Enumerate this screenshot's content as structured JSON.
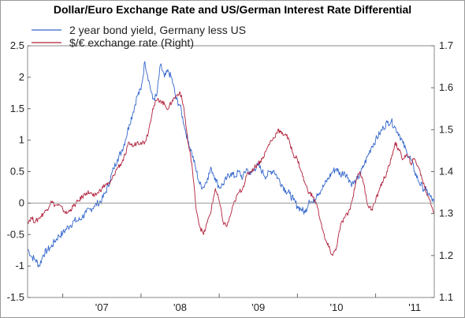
{
  "chart_data": {
    "type": "line",
    "title": "Dollar/Euro Exchange Rate and US/German Interest Rate Differential",
    "x_ticks": [
      "'07",
      "'08",
      "'09",
      "'10",
      "'11"
    ],
    "y_left": {
      "ylim": [
        -1.5,
        2.5
      ],
      "ticks": [
        "2.5",
        "2",
        "1.5",
        "1",
        "0.5",
        "0",
        "-0.5",
        "-1",
        "-1.5"
      ]
    },
    "y_right": {
      "ylim": [
        1.1,
        1.7
      ],
      "ticks": [
        "1.7",
        "1.6",
        "1.5",
        "1.4",
        "1.3",
        "1.2",
        "1.1"
      ]
    },
    "xlim": [
      2006.55,
      2011.75
    ],
    "grid": false,
    "zero_line": 0,
    "legend_position": "top-left",
    "series": [
      {
        "name": "2 year bond yield, Germany less US",
        "axis": "left",
        "color": "#3366cc",
        "points": [
          [
            2006.55,
            -0.72
          ],
          [
            2006.6,
            -0.85
          ],
          [
            2006.65,
            -0.9
          ],
          [
            2006.7,
            -1.0
          ],
          [
            2006.75,
            -0.82
          ],
          [
            2006.8,
            -0.75
          ],
          [
            2006.85,
            -0.7
          ],
          [
            2006.9,
            -0.6
          ],
          [
            2006.95,
            -0.52
          ],
          [
            2007.0,
            -0.48
          ],
          [
            2007.05,
            -0.4
          ],
          [
            2007.1,
            -0.35
          ],
          [
            2007.15,
            -0.28
          ],
          [
            2007.2,
            -0.28
          ],
          [
            2007.25,
            -0.22
          ],
          [
            2007.3,
            -0.15
          ],
          [
            2007.35,
            -0.1
          ],
          [
            2007.4,
            -0.05
          ],
          [
            2007.45,
            0.0
          ],
          [
            2007.5,
            0.05
          ],
          [
            2007.55,
            0.18
          ],
          [
            2007.6,
            0.35
          ],
          [
            2007.65,
            0.55
          ],
          [
            2007.7,
            0.7
          ],
          [
            2007.75,
            0.82
          ],
          [
            2007.8,
            1.0
          ],
          [
            2007.85,
            1.25
          ],
          [
            2007.9,
            1.45
          ],
          [
            2007.95,
            1.7
          ],
          [
            2008.0,
            1.8
          ],
          [
            2008.05,
            2.25
          ],
          [
            2008.1,
            1.95
          ],
          [
            2008.15,
            1.65
          ],
          [
            2008.2,
            1.7
          ],
          [
            2008.25,
            2.2
          ],
          [
            2008.3,
            2.0
          ],
          [
            2008.35,
            2.1
          ],
          [
            2008.4,
            1.95
          ],
          [
            2008.45,
            1.65
          ],
          [
            2008.5,
            1.55
          ],
          [
            2008.55,
            1.25
          ],
          [
            2008.6,
            1.0
          ],
          [
            2008.65,
            0.8
          ],
          [
            2008.7,
            0.55
          ],
          [
            2008.75,
            0.3
          ],
          [
            2008.8,
            0.25
          ],
          [
            2008.85,
            0.4
          ],
          [
            2008.9,
            0.55
          ],
          [
            2008.95,
            0.4
          ],
          [
            2009.0,
            0.25
          ],
          [
            2009.05,
            0.3
          ],
          [
            2009.1,
            0.4
          ],
          [
            2009.15,
            0.48
          ],
          [
            2009.2,
            0.42
          ],
          [
            2009.25,
            0.5
          ],
          [
            2009.3,
            0.4
          ],
          [
            2009.35,
            0.55
          ],
          [
            2009.4,
            0.45
          ],
          [
            2009.45,
            0.55
          ],
          [
            2009.5,
            0.6
          ],
          [
            2009.55,
            0.5
          ],
          [
            2009.6,
            0.42
          ],
          [
            2009.65,
            0.5
          ],
          [
            2009.7,
            0.52
          ],
          [
            2009.75,
            0.4
          ],
          [
            2009.8,
            0.3
          ],
          [
            2009.85,
            0.2
          ],
          [
            2009.9,
            0.15
          ],
          [
            2009.95,
            0.05
          ],
          [
            2010.0,
            -0.05
          ],
          [
            2010.05,
            -0.1
          ],
          [
            2010.1,
            -0.15
          ],
          [
            2010.15,
            0.05
          ],
          [
            2010.2,
            0.0
          ],
          [
            2010.25,
            0.15
          ],
          [
            2010.3,
            0.2
          ],
          [
            2010.35,
            0.3
          ],
          [
            2010.4,
            0.4
          ],
          [
            2010.45,
            0.5
          ],
          [
            2010.5,
            0.55
          ],
          [
            2010.55,
            0.45
          ],
          [
            2010.6,
            0.5
          ],
          [
            2010.65,
            0.4
          ],
          [
            2010.7,
            0.3
          ],
          [
            2010.75,
            0.35
          ],
          [
            2010.8,
            0.45
          ],
          [
            2010.85,
            0.6
          ],
          [
            2010.9,
            0.75
          ],
          [
            2010.95,
            0.9
          ],
          [
            2011.0,
            1.0
          ],
          [
            2011.05,
            1.1
          ],
          [
            2011.1,
            1.2
          ],
          [
            2011.15,
            1.28
          ],
          [
            2011.2,
            1.3
          ],
          [
            2011.25,
            1.2
          ],
          [
            2011.3,
            1.1
          ],
          [
            2011.35,
            0.95
          ],
          [
            2011.4,
            0.8
          ],
          [
            2011.45,
            0.7
          ],
          [
            2011.5,
            0.5
          ],
          [
            2011.55,
            0.35
          ],
          [
            2011.6,
            0.25
          ],
          [
            2011.65,
            0.2
          ],
          [
            2011.7,
            0.1
          ],
          [
            2011.75,
            0.0
          ]
        ]
      },
      {
        "name": "$/€ exchange rate  (Right)",
        "axis": "right",
        "color": "#b0203a",
        "points": [
          [
            2006.55,
            1.28
          ],
          [
            2006.6,
            1.29
          ],
          [
            2006.65,
            1.28
          ],
          [
            2006.7,
            1.29
          ],
          [
            2006.75,
            1.3
          ],
          [
            2006.8,
            1.31
          ],
          [
            2006.85,
            1.33
          ],
          [
            2006.9,
            1.32
          ],
          [
            2006.95,
            1.32
          ],
          [
            2007.0,
            1.31
          ],
          [
            2007.05,
            1.3
          ],
          [
            2007.1,
            1.31
          ],
          [
            2007.15,
            1.32
          ],
          [
            2007.2,
            1.33
          ],
          [
            2007.25,
            1.34
          ],
          [
            2007.3,
            1.35
          ],
          [
            2007.35,
            1.35
          ],
          [
            2007.4,
            1.34
          ],
          [
            2007.45,
            1.35
          ],
          [
            2007.5,
            1.36
          ],
          [
            2007.55,
            1.37
          ],
          [
            2007.6,
            1.37
          ],
          [
            2007.65,
            1.39
          ],
          [
            2007.7,
            1.41
          ],
          [
            2007.75,
            1.42
          ],
          [
            2007.8,
            1.44
          ],
          [
            2007.85,
            1.47
          ],
          [
            2007.9,
            1.46
          ],
          [
            2007.95,
            1.47
          ],
          [
            2008.0,
            1.47
          ],
          [
            2008.05,
            1.47
          ],
          [
            2008.1,
            1.5
          ],
          [
            2008.15,
            1.55
          ],
          [
            2008.2,
            1.57
          ],
          [
            2008.25,
            1.57
          ],
          [
            2008.3,
            1.56
          ],
          [
            2008.35,
            1.55
          ],
          [
            2008.4,
            1.57
          ],
          [
            2008.45,
            1.58
          ],
          [
            2008.5,
            1.59
          ],
          [
            2008.55,
            1.55
          ],
          [
            2008.6,
            1.47
          ],
          [
            2008.65,
            1.42
          ],
          [
            2008.7,
            1.32
          ],
          [
            2008.75,
            1.27
          ],
          [
            2008.8,
            1.25
          ],
          [
            2008.85,
            1.28
          ],
          [
            2008.9,
            1.31
          ],
          [
            2008.95,
            1.36
          ],
          [
            2009.0,
            1.33
          ],
          [
            2009.05,
            1.28
          ],
          [
            2009.1,
            1.27
          ],
          [
            2009.15,
            1.3
          ],
          [
            2009.2,
            1.33
          ],
          [
            2009.25,
            1.35
          ],
          [
            2009.3,
            1.36
          ],
          [
            2009.35,
            1.39
          ],
          [
            2009.4,
            1.4
          ],
          [
            2009.45,
            1.41
          ],
          [
            2009.5,
            1.42
          ],
          [
            2009.55,
            1.43
          ],
          [
            2009.6,
            1.45
          ],
          [
            2009.65,
            1.47
          ],
          [
            2009.7,
            1.48
          ],
          [
            2009.75,
            1.5
          ],
          [
            2009.8,
            1.49
          ],
          [
            2009.85,
            1.49
          ],
          [
            2009.9,
            1.47
          ],
          [
            2009.95,
            1.44
          ],
          [
            2010.0,
            1.43
          ],
          [
            2010.05,
            1.4
          ],
          [
            2010.1,
            1.37
          ],
          [
            2010.15,
            1.35
          ],
          [
            2010.2,
            1.34
          ],
          [
            2010.25,
            1.32
          ],
          [
            2010.3,
            1.28
          ],
          [
            2010.35,
            1.24
          ],
          [
            2010.4,
            1.22
          ],
          [
            2010.45,
            1.2
          ],
          [
            2010.5,
            1.22
          ],
          [
            2010.55,
            1.27
          ],
          [
            2010.6,
            1.29
          ],
          [
            2010.65,
            1.3
          ],
          [
            2010.7,
            1.33
          ],
          [
            2010.75,
            1.38
          ],
          [
            2010.8,
            1.4
          ],
          [
            2010.85,
            1.37
          ],
          [
            2010.9,
            1.32
          ],
          [
            2010.95,
            1.31
          ],
          [
            2011.0,
            1.33
          ],
          [
            2011.05,
            1.36
          ],
          [
            2011.1,
            1.38
          ],
          [
            2011.15,
            1.4
          ],
          [
            2011.2,
            1.43
          ],
          [
            2011.25,
            1.47
          ],
          [
            2011.3,
            1.45
          ],
          [
            2011.35,
            1.43
          ],
          [
            2011.4,
            1.44
          ],
          [
            2011.45,
            1.42
          ],
          [
            2011.5,
            1.43
          ],
          [
            2011.55,
            1.41
          ],
          [
            2011.6,
            1.38
          ],
          [
            2011.65,
            1.35
          ],
          [
            2011.7,
            1.33
          ],
          [
            2011.75,
            1.3
          ]
        ]
      }
    ]
  }
}
